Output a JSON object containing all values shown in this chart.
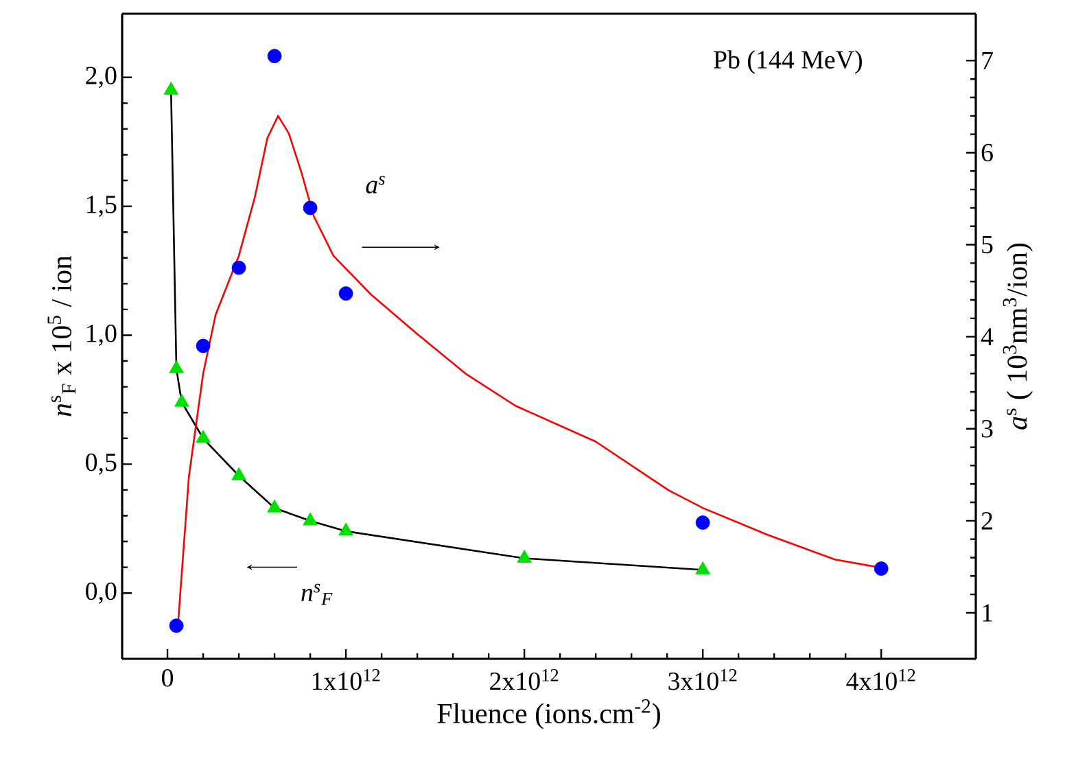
{
  "chart_data": {
    "type": "line",
    "xlabel": "Fluence (ions.cm$^{-2}$)",
    "ylabel": "*n*$^{s}$$_{F}$ x 10$^{5}$ / ion",
    "y2label": "*a*$^{s}$ ( 10$^{3}$nm$^{3}$/ion)",
    "annotations": [
      "Pb (144 MeV)",
      "a$^{s}$",
      "n$^{s}$$_{F}$"
    ],
    "xlim": [
      -254000000000.0,
      4530000000000.0
    ],
    "xticks": [
      0,
      {
        "value": 1000000000000.0,
        "label": "1x10$^{12}$"
      },
      {
        "value": 2000000000000.0,
        "label": "2x10$^{12}$"
      },
      {
        "value": 3000000000000.0,
        "label": "3x10$^{12}$"
      },
      {
        "value": 4000000000000.0,
        "label": "4x10$^{12}$"
      }
    ],
    "ylim": [
      -0.255,
      2.247
    ],
    "yticks": [
      {
        "value": 0,
        "label": "0,0"
      },
      {
        "value": 0.5,
        "label": "0,5"
      },
      {
        "value": 1,
        "label": "1,0"
      },
      {
        "value": 1.5,
        "label": "1,5"
      },
      {
        "value": 2,
        "label": "2,0"
      }
    ],
    "y2lim": [
      0.5,
      7.51
    ],
    "y2ticks": [
      1,
      2,
      3,
      4,
      5,
      6,
      7
    ],
    "grid": false,
    "series": [
      {
        "color": "#000000",
        "marker": "none",
        "line_style": "solid",
        "x": [
          20000000000.0,
          50000000000.0,
          80000000000.0,
          200000000000.0,
          400000000000.0,
          600000000000.0,
          800000000000.0,
          1000000000000.0,
          2000000000000.0,
          3000000000000.0
        ],
        "values": [
          1.95,
          0.87,
          0.74,
          0.6,
          0.455,
          0.33,
          0.28,
          0.24,
          0.135,
          0.09
        ]
      },
      {
        "type": "scatter",
        "color": "#00e000",
        "marker": "triangle",
        "x": [
          20000000000.0,
          50000000000.0,
          80000000000.0,
          200000000000.0,
          400000000000.0,
          600000000000.0,
          800000000000.0,
          1000000000000.0,
          2000000000000.0,
          3000000000000.0
        ],
        "values": [
          1.95,
          0.87,
          0.74,
          0.6,
          0.455,
          0.33,
          0.28,
          0.24,
          0.135,
          0.09
        ]
      },
      {
        "axis": "y2",
        "color": "#ff0000",
        "marker": "none",
        "line_style": "solid",
        "x": [
          60000000000.0,
          120000000000.0,
          200000000000.0,
          270000000000.0,
          400000000000.0,
          490000000000.0,
          560000000000.0,
          620000000000.0,
          680000000000.0,
          750000000000.0,
          820000000000.0,
          930000000000.0,
          1140000000000.0,
          1400000000000.0,
          1670000000000.0,
          1950000000000.0,
          2400000000000.0,
          2810000000000.0,
          3000000000000.0,
          3360000000000.0,
          3740000000000.0,
          4000000000000.0
        ],
        "values": [
          0.9,
          2.48,
          3.6,
          4.24,
          4.88,
          5.52,
          6.16,
          6.4,
          6.21,
          5.79,
          5.31,
          4.88,
          4.46,
          4.03,
          3.6,
          3.25,
          2.86,
          2.33,
          2.14,
          1.85,
          1.58,
          1.49
        ]
      },
      {
        "type": "scatter",
        "axis": "y2",
        "color": "#0000ff",
        "marker": "circle",
        "x": [
          50000000000.0,
          200000000000.0,
          400000000000.0,
          600000000000.0,
          800000000000.0,
          1000000000000.0,
          3000000000000.0,
          4000000000000.0
        ],
        "values": [
          0.86,
          3.9,
          4.75,
          7.05,
          5.4,
          4.47,
          1.98,
          1.48
        ]
      }
    ]
  }
}
